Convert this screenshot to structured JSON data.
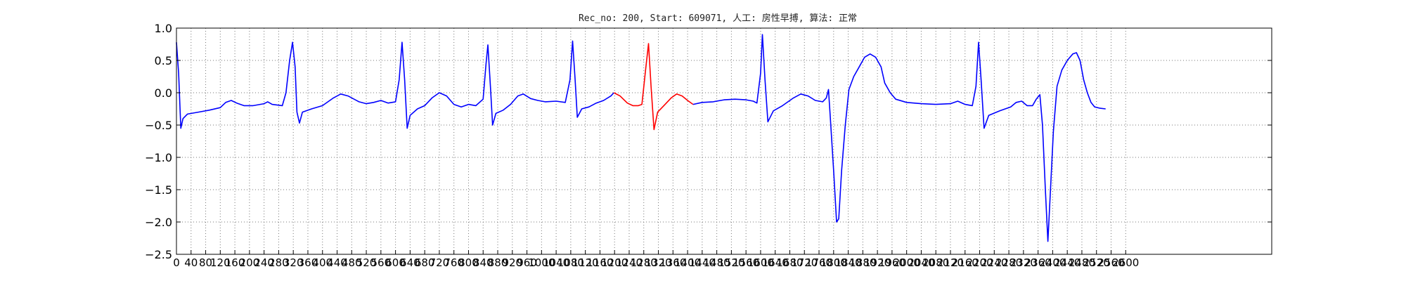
{
  "chart_data": {
    "type": "line",
    "title": "Rec_no: 200, Start: 609071, 人工: 房性早搏, 算法: 正常",
    "xlabel": "",
    "ylabel": "",
    "xlim": [
      0,
      3000
    ],
    "ylim": [
      -2.5,
      1.0
    ],
    "grid": true,
    "y_ticks": [
      "1.0",
      "0.5",
      "0.0",
      "−0.5",
      "−1.0",
      "−1.5",
      "−2.0",
      "−2.5"
    ],
    "x_ticks": [
      0,
      40,
      80,
      120,
      160,
      200,
      240,
      280,
      320,
      360,
      400,
      440,
      480,
      520,
      560,
      600,
      640,
      680,
      720,
      760,
      800,
      840,
      880,
      920,
      960,
      1000,
      1040,
      1080,
      1120,
      1160,
      1200,
      1240,
      1280,
      1320,
      1360,
      1400,
      1440,
      1480,
      1520,
      1560,
      1600,
      1640,
      1680,
      1720,
      1760,
      1800,
      1840,
      1880,
      1920,
      1960,
      2000,
      2040,
      2080,
      2120,
      2160,
      2200,
      2240,
      2280,
      2320,
      2360,
      2400,
      2440,
      2480,
      2520,
      2560,
      2600
    ],
    "series": [
      {
        "color": "#0000ff",
        "points": [
          [
            0,
            0.78
          ],
          [
            6,
            0.3
          ],
          [
            12,
            -0.55
          ],
          [
            18,
            -0.4
          ],
          [
            30,
            -0.33
          ],
          [
            60,
            -0.3
          ],
          [
            90,
            -0.27
          ],
          [
            120,
            -0.23
          ],
          [
            135,
            -0.15
          ],
          [
            150,
            -0.12
          ],
          [
            165,
            -0.16
          ],
          [
            185,
            -0.2
          ],
          [
            210,
            -0.2
          ],
          [
            240,
            -0.17
          ],
          [
            250,
            -0.14
          ],
          [
            262,
            -0.18
          ],
          [
            290,
            -0.2
          ],
          [
            300,
            0.0
          ],
          [
            310,
            0.5
          ],
          [
            318,
            0.78
          ],
          [
            325,
            0.4
          ],
          [
            330,
            -0.3
          ],
          [
            337,
            -0.47
          ],
          [
            345,
            -0.3
          ],
          [
            370,
            -0.25
          ],
          [
            400,
            -0.2
          ],
          [
            430,
            -0.08
          ],
          [
            450,
            -0.02
          ],
          [
            470,
            -0.05
          ],
          [
            500,
            -0.14
          ],
          [
            520,
            -0.17
          ],
          [
            540,
            -0.15
          ],
          [
            560,
            -0.12
          ],
          [
            580,
            -0.16
          ],
          [
            600,
            -0.14
          ],
          [
            610,
            0.2
          ],
          [
            618,
            0.78
          ],
          [
            625,
            0.2
          ],
          [
            632,
            -0.55
          ],
          [
            640,
            -0.35
          ],
          [
            660,
            -0.25
          ],
          [
            680,
            -0.2
          ],
          [
            700,
            -0.08
          ],
          [
            720,
            -0.0
          ],
          [
            740,
            -0.05
          ],
          [
            760,
            -0.18
          ],
          [
            780,
            -0.22
          ],
          [
            800,
            -0.18
          ],
          [
            820,
            -0.2
          ],
          [
            840,
            -0.1
          ],
          [
            848,
            0.45
          ],
          [
            853,
            0.74
          ],
          [
            860,
            0.1
          ],
          [
            866,
            -0.5
          ],
          [
            875,
            -0.32
          ],
          [
            895,
            -0.27
          ],
          [
            915,
            -0.18
          ],
          [
            935,
            -0.05
          ],
          [
            950,
            -0.02
          ],
          [
            970,
            -0.09
          ],
          [
            990,
            -0.12
          ],
          [
            1010,
            -0.14
          ],
          [
            1040,
            -0.13
          ],
          [
            1065,
            -0.15
          ],
          [
            1078,
            0.2
          ],
          [
            1085,
            0.8
          ],
          [
            1092,
            0.2
          ],
          [
            1098,
            -0.38
          ],
          [
            1110,
            -0.25
          ],
          [
            1130,
            -0.22
          ],
          [
            1150,
            -0.16
          ],
          [
            1170,
            -0.12
          ],
          [
            1190,
            -0.05
          ],
          [
            1198,
            0.0
          ]
        ]
      },
      {
        "color": "#ff0000",
        "points": [
          [
            1198,
            0.0
          ],
          [
            1215,
            -0.05
          ],
          [
            1235,
            -0.16
          ],
          [
            1250,
            -0.2
          ],
          [
            1265,
            -0.2
          ],
          [
            1275,
            -0.18
          ],
          [
            1285,
            0.35
          ],
          [
            1293,
            0.76
          ],
          [
            1300,
            0.1
          ],
          [
            1308,
            -0.57
          ],
          [
            1318,
            -0.3
          ],
          [
            1335,
            -0.2
          ],
          [
            1355,
            -0.08
          ],
          [
            1370,
            -0.02
          ],
          [
            1385,
            -0.05
          ],
          [
            1400,
            -0.12
          ],
          [
            1415,
            -0.18
          ]
        ]
      },
      {
        "color": "#0000ff",
        "points": [
          [
            1415,
            -0.18
          ],
          [
            1440,
            -0.15
          ],
          [
            1470,
            -0.14
          ],
          [
            1500,
            -0.11
          ],
          [
            1530,
            -0.1
          ],
          [
            1560,
            -0.11
          ],
          [
            1580,
            -0.13
          ],
          [
            1590,
            -0.16
          ],
          [
            1600,
            0.3
          ],
          [
            1605,
            0.9
          ],
          [
            1612,
            0.2
          ],
          [
            1620,
            -0.45
          ],
          [
            1635,
            -0.28
          ],
          [
            1660,
            -0.2
          ],
          [
            1690,
            -0.08
          ],
          [
            1710,
            -0.02
          ],
          [
            1730,
            -0.05
          ],
          [
            1750,
            -0.12
          ],
          [
            1770,
            -0.14
          ],
          [
            1780,
            -0.08
          ],
          [
            1786,
            0.05
          ],
          [
            1790,
            -0.3
          ],
          [
            1800,
            -1.2
          ],
          [
            1808,
            -2.0
          ],
          [
            1814,
            -1.95
          ],
          [
            1822,
            -1.2
          ],
          [
            1832,
            -0.5
          ],
          [
            1842,
            0.05
          ],
          [
            1855,
            0.25
          ],
          [
            1870,
            0.4
          ],
          [
            1885,
            0.55
          ],
          [
            1900,
            0.6
          ],
          [
            1915,
            0.55
          ],
          [
            1930,
            0.4
          ],
          [
            1940,
            0.15
          ],
          [
            1955,
            0.0
          ],
          [
            1970,
            -0.1
          ],
          [
            2000,
            -0.15
          ],
          [
            2040,
            -0.17
          ],
          [
            2080,
            -0.18
          ],
          [
            2120,
            -0.17
          ],
          [
            2140,
            -0.13
          ],
          [
            2160,
            -0.18
          ],
          [
            2180,
            -0.2
          ],
          [
            2190,
            0.1
          ],
          [
            2197,
            0.78
          ],
          [
            2204,
            0.2
          ],
          [
            2212,
            -0.55
          ],
          [
            2225,
            -0.35
          ],
          [
            2255,
            -0.28
          ],
          [
            2285,
            -0.22
          ],
          [
            2300,
            -0.15
          ],
          [
            2315,
            -0.13
          ],
          [
            2330,
            -0.2
          ],
          [
            2345,
            -0.2
          ],
          [
            2355,
            -0.1
          ],
          [
            2365,
            -0.03
          ],
          [
            2372,
            -0.5
          ],
          [
            2380,
            -1.5
          ],
          [
            2387,
            -2.3
          ],
          [
            2394,
            -1.5
          ],
          [
            2402,
            -0.6
          ],
          [
            2412,
            0.1
          ],
          [
            2425,
            0.35
          ],
          [
            2440,
            0.5
          ],
          [
            2455,
            0.6
          ],
          [
            2465,
            0.62
          ],
          [
            2475,
            0.5
          ],
          [
            2485,
            0.2
          ],
          [
            2495,
            0.0
          ],
          [
            2505,
            -0.15
          ],
          [
            2515,
            -0.22
          ],
          [
            2530,
            -0.24
          ],
          [
            2545,
            -0.25
          ]
        ]
      }
    ]
  }
}
